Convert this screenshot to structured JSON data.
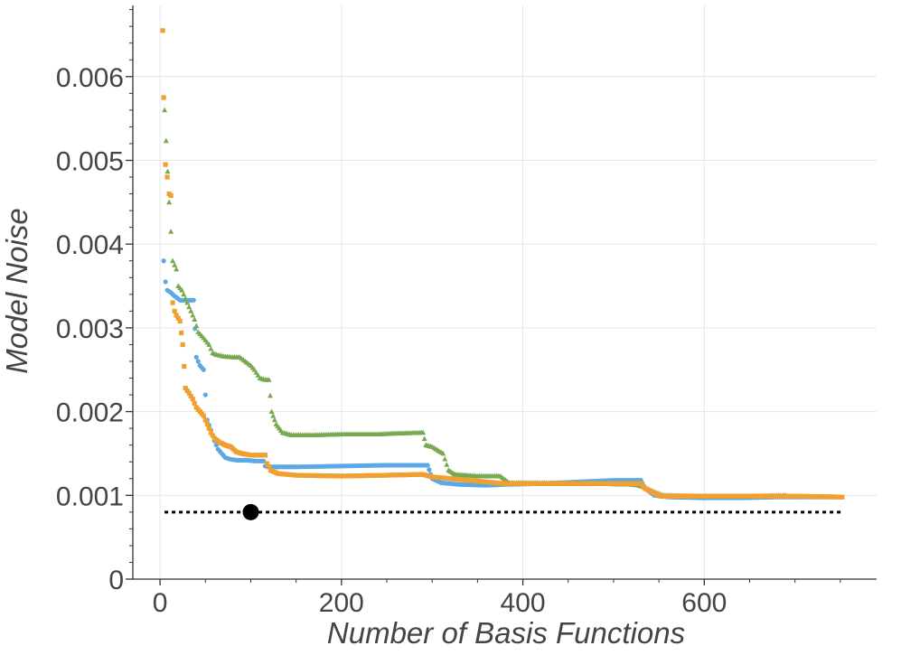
{
  "chart_data": {
    "type": "scatter",
    "title": "",
    "xlabel": "Number of Basis Functions",
    "ylabel": "Model Noise",
    "xlim": [
      -30,
      790
    ],
    "ylim": [
      0,
      0.00685
    ],
    "xticks": [
      0,
      200,
      400,
      600
    ],
    "xtick_labels": [
      "0",
      "200",
      "400",
      "600"
    ],
    "yticks": [
      0,
      0.001,
      0.002,
      0.003,
      0.004,
      0.005,
      0.006
    ],
    "ytick_labels": [
      "0",
      "0.001",
      "0.002",
      "0.003",
      "0.004",
      "0.005",
      "0.006"
    ],
    "grid": true,
    "legend": "none",
    "series": [
      {
        "color": "#5aa9e6",
        "marker": "circle",
        "points": [
          [
            4,
            0.0038
          ],
          [
            6,
            0.00355
          ],
          [
            8,
            0.00345
          ],
          [
            12,
            0.00342
          ],
          [
            16,
            0.00338
          ],
          [
            22,
            0.00333
          ],
          [
            30,
            0.00333
          ],
          [
            37,
            0.00333
          ],
          [
            40,
            0.00265
          ],
          [
            44,
            0.00255
          ],
          [
            48,
            0.0025
          ],
          [
            52,
            0.0019
          ],
          [
            56,
            0.00178
          ],
          [
            60,
            0.00165
          ],
          [
            64,
            0.00155
          ],
          [
            68,
            0.0015
          ],
          [
            72,
            0.00145
          ],
          [
            78,
            0.00143
          ],
          [
            85,
            0.00142
          ],
          [
            95,
            0.00142
          ],
          [
            105,
            0.00141
          ],
          [
            114,
            0.00141
          ],
          [
            116,
            0.00135
          ],
          [
            120,
            0.00134
          ],
          [
            150,
            0.00134
          ],
          [
            200,
            0.00135
          ],
          [
            250,
            0.00136
          ],
          [
            295,
            0.00136
          ],
          [
            300,
            0.0012
          ],
          [
            310,
            0.00115
          ],
          [
            330,
            0.00113
          ],
          [
            360,
            0.00112
          ],
          [
            380,
            0.00113
          ],
          [
            420,
            0.00114
          ],
          [
            460,
            0.00116
          ],
          [
            500,
            0.00118
          ],
          [
            530,
            0.00118
          ],
          [
            535,
            0.00108
          ],
          [
            545,
            0.001
          ],
          [
            560,
            0.00098
          ],
          [
            600,
            0.00097
          ],
          [
            640,
            0.00097
          ],
          [
            680,
            0.00098
          ],
          [
            720,
            0.00098
          ],
          [
            752,
            0.00098
          ]
        ]
      },
      {
        "color": "#77a951",
        "marker": "triangle",
        "points": [
          [
            5,
            0.0056
          ],
          [
            10,
            0.0045
          ],
          [
            14,
            0.0038
          ],
          [
            18,
            0.0037
          ],
          [
            20,
            0.0035
          ],
          [
            24,
            0.00345
          ],
          [
            28,
            0.00335
          ],
          [
            34,
            0.0032
          ],
          [
            38,
            0.0031
          ],
          [
            42,
            0.00295
          ],
          [
            48,
            0.00288
          ],
          [
            54,
            0.0028
          ],
          [
            58,
            0.0027
          ],
          [
            62,
            0.00268
          ],
          [
            70,
            0.00266
          ],
          [
            80,
            0.00265
          ],
          [
            88,
            0.00265
          ],
          [
            94,
            0.0026
          ],
          [
            100,
            0.00255
          ],
          [
            104,
            0.0025
          ],
          [
            110,
            0.0024
          ],
          [
            116,
            0.00238
          ],
          [
            120,
            0.00238
          ],
          [
            123,
            0.002
          ],
          [
            128,
            0.00185
          ],
          [
            135,
            0.00175
          ],
          [
            145,
            0.00172
          ],
          [
            170,
            0.00172
          ],
          [
            200,
            0.00173
          ],
          [
            240,
            0.00173
          ],
          [
            260,
            0.00174
          ],
          [
            290,
            0.00175
          ],
          [
            293,
            0.0016
          ],
          [
            300,
            0.00158
          ],
          [
            312,
            0.0015
          ],
          [
            318,
            0.0013
          ],
          [
            325,
            0.00125
          ],
          [
            350,
            0.00123
          ],
          [
            375,
            0.00123
          ],
          [
            385,
            0.00115
          ],
          [
            420,
            0.00115
          ],
          [
            480,
            0.00114
          ],
          [
            520,
            0.00113
          ],
          [
            528,
            0.00112
          ],
          [
            533,
            0.0011
          ],
          [
            545,
            0.00104
          ],
          [
            555,
            0.001
          ],
          [
            600,
            0.00099
          ],
          [
            650,
            0.00099
          ],
          [
            690,
            0.001
          ]
        ]
      },
      {
        "color": "#f0a030",
        "marker": "square",
        "points": [
          [
            3,
            0.00655
          ],
          [
            4,
            0.00575
          ],
          [
            6,
            0.00495
          ],
          [
            8,
            0.0048
          ],
          [
            10,
            0.0046
          ],
          [
            12,
            0.00458
          ],
          [
            14,
            0.0033
          ],
          [
            16,
            0.0032
          ],
          [
            18,
            0.00315
          ],
          [
            22,
            0.00308
          ],
          [
            25,
            0.0028
          ],
          [
            28,
            0.00228
          ],
          [
            32,
            0.00222
          ],
          [
            36,
            0.00215
          ],
          [
            40,
            0.00205
          ],
          [
            44,
            0.002
          ],
          [
            48,
            0.00195
          ],
          [
            52,
            0.00185
          ],
          [
            56,
            0.00175
          ],
          [
            60,
            0.00168
          ],
          [
            66,
            0.00163
          ],
          [
            72,
            0.0016
          ],
          [
            78,
            0.00158
          ],
          [
            84,
            0.00152
          ],
          [
            90,
            0.0015
          ],
          [
            100,
            0.00148
          ],
          [
            110,
            0.00148
          ],
          [
            116,
            0.00148
          ],
          [
            118,
            0.00138
          ],
          [
            122,
            0.0013
          ],
          [
            130,
            0.00126
          ],
          [
            150,
            0.00124
          ],
          [
            200,
            0.00123
          ],
          [
            250,
            0.00124
          ],
          [
            290,
            0.00125
          ],
          [
            300,
            0.00122
          ],
          [
            320,
            0.0012
          ],
          [
            340,
            0.00118
          ],
          [
            360,
            0.00116
          ],
          [
            380,
            0.00114
          ],
          [
            410,
            0.00114
          ],
          [
            450,
            0.00114
          ],
          [
            500,
            0.00114
          ],
          [
            530,
            0.00114
          ],
          [
            535,
            0.00108
          ],
          [
            545,
            0.00103
          ],
          [
            552,
            0.00099
          ],
          [
            600,
            0.00099
          ],
          [
            650,
            0.00099
          ],
          [
            700,
            0.00099
          ],
          [
            752,
            0.00098
          ]
        ]
      },
      {
        "color": "#000000",
        "marker": "dotted-line",
        "points": [
          [
            5,
            0.0008
          ],
          [
            752,
            0.0008
          ]
        ]
      },
      {
        "color": "#000000",
        "marker": "large-circle",
        "points": [
          [
            100,
            0.0008
          ]
        ]
      }
    ]
  }
}
